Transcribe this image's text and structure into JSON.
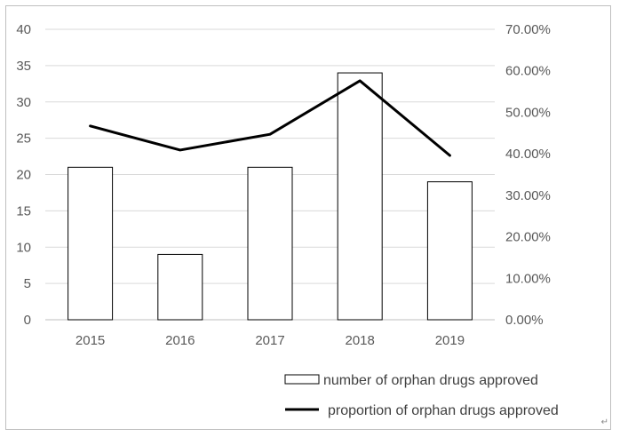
{
  "chart_data": {
    "type": "bar",
    "categories": [
      "2015",
      "2016",
      "2017",
      "2018",
      "2019"
    ],
    "series": [
      {
        "name": "number of orphan drugs approved",
        "type": "bar",
        "axis": "left",
        "values": [
          21,
          9,
          21,
          34,
          19
        ]
      },
      {
        "name": "proportion of orphan drugs approved",
        "type": "line",
        "axis": "right",
        "values": [
          0.467,
          0.409,
          0.447,
          0.576,
          0.396
        ]
      }
    ],
    "y_left": {
      "lim": [
        0,
        40
      ],
      "ticks": [
        "0",
        "5",
        "10",
        "15",
        "20",
        "25",
        "30",
        "35",
        "40"
      ]
    },
    "y_right": {
      "lim": [
        0,
        0.7
      ],
      "ticks": [
        "0.00%",
        "10.00%",
        "20.00%",
        "30.00%",
        "40.00%",
        "50.00%",
        "60.00%",
        "70.00%"
      ]
    },
    "grid": true,
    "legend_position": "bottom-right",
    "colors": {
      "bar_fill": "#ffffff",
      "bar_stroke": "#000000",
      "line": "#000000",
      "grid": "#d9d9d9"
    }
  },
  "corner_mark": "↵"
}
